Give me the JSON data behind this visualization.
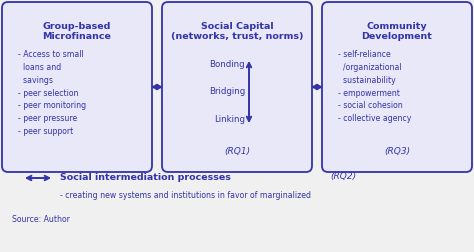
{
  "bg_color": "#f0f0f0",
  "outer_face": "#f0f0f0",
  "box_color": "#3333aa",
  "box_face": "#e8e8f8",
  "text_color": "#3333aa",
  "box1_title": "Group-based\nMicrofinance",
  "box1_items": "- Access to small\n  loans and\n  savings\n- peer selection\n- peer monitoring\n- peer pressure\n- peer support",
  "box2_title": "Social Capital\n(networks, trust, norms)",
  "box2_bonding": "Bonding",
  "box2_bridging": "Bridging",
  "box2_linking": "Linking",
  "box2_rq": "(RQ1)",
  "box3_title": "Community\nDevelopment",
  "box3_items": "- self-reliance\n  /organizational\n  sustainability\n- empowerment\n- social cohesion\n- collective agency",
  "box3_rq": "(RQ3)",
  "bottom_arrow_label": "Social intermediation processes",
  "bottom_rq": "(RQ2)",
  "bottom_sub": "- creating new systems and institutions in favor of marginalized",
  "source": "Source: Author",
  "fig_width": 4.74,
  "fig_height": 2.52,
  "dpi": 100
}
